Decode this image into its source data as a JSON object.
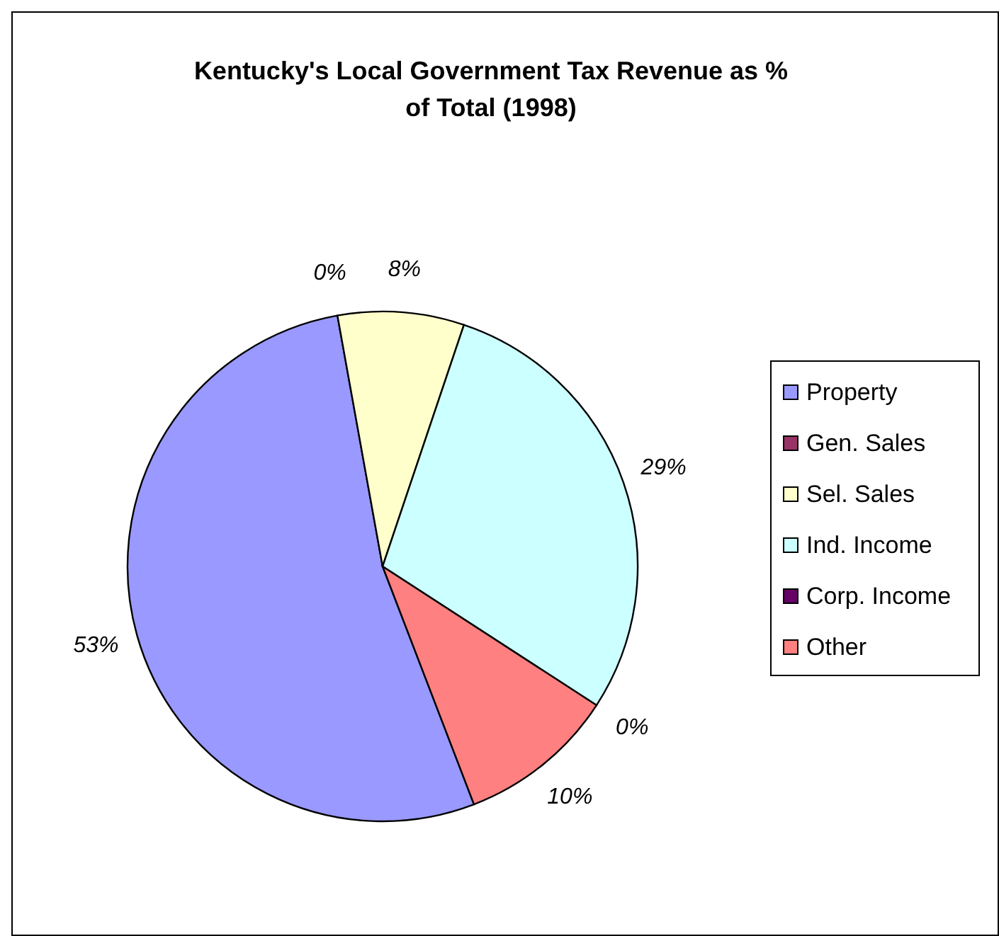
{
  "chart_data": {
    "type": "pie",
    "title": "Kentucky's Local Government Tax Revenue as % of Total (1998)",
    "categories": [
      "Property",
      "Gen. Sales",
      "Sel. Sales",
      "Ind. Income",
      "Corp. Income",
      "Other"
    ],
    "values": [
      53,
      0,
      8,
      29,
      0,
      10
    ],
    "colors": [
      "#9999ff",
      "#993366",
      "#ffffcc",
      "#ccffff",
      "#660066",
      "#ff8080"
    ],
    "value_labels": [
      "53%",
      "0%",
      "8%",
      "29%",
      "0%",
      "10%"
    ],
    "legend": "right"
  }
}
